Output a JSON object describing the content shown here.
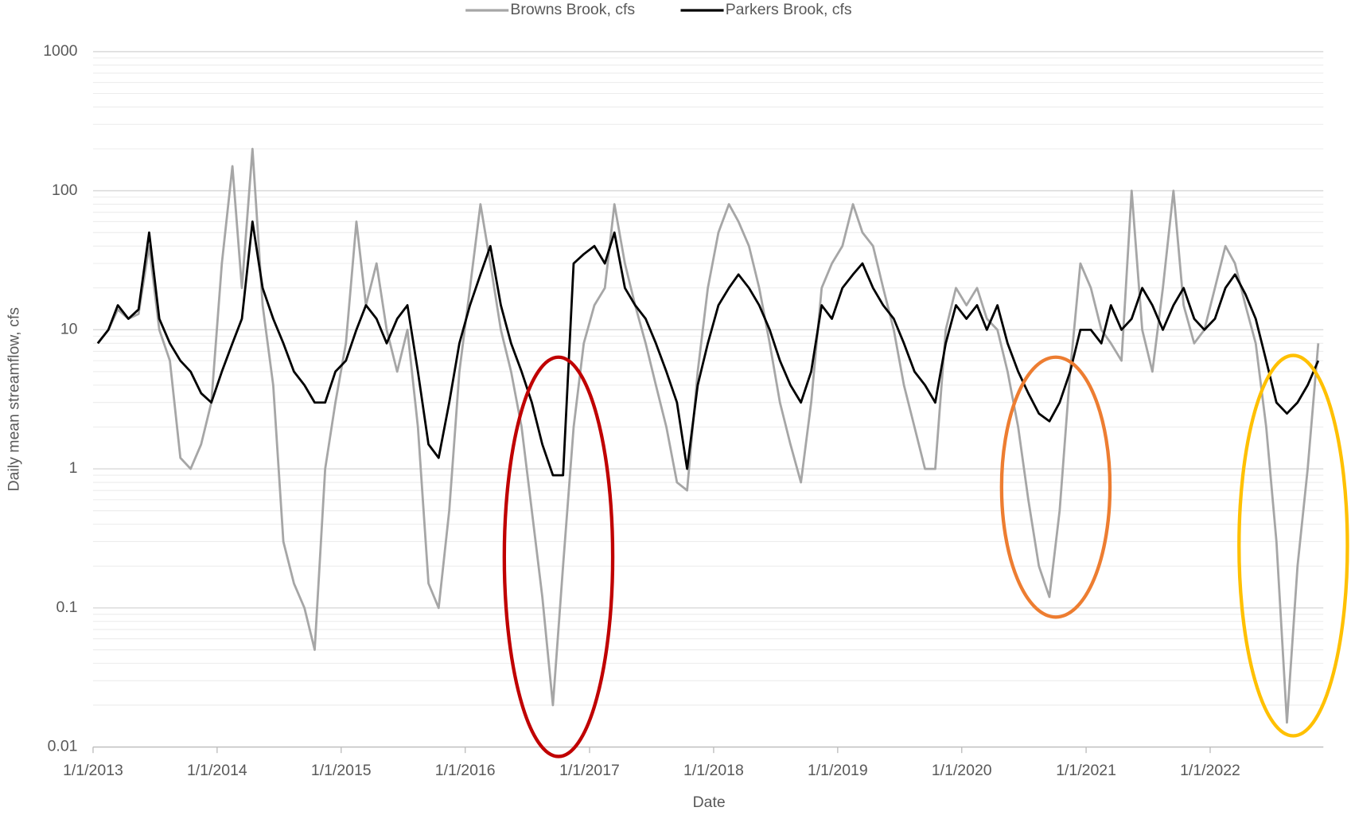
{
  "chart_data": {
    "type": "line",
    "x_label": "Date",
    "y_label": "Daily mean streamflow, cfs",
    "log_scale_y": true,
    "grid": true,
    "minor_grid": true,
    "legend_position": "top",
    "xlim": [
      "2013-01-01",
      "2022-11-30"
    ],
    "xticks": [
      {
        "value": "2013-01-01",
        "label": "1/1/2013"
      },
      {
        "value": "2014-01-01",
        "label": "1/1/2014"
      },
      {
        "value": "2015-01-01",
        "label": "1/1/2015"
      },
      {
        "value": "2016-01-01",
        "label": "1/1/2016"
      },
      {
        "value": "2017-01-01",
        "label": "1/1/2017"
      },
      {
        "value": "2018-01-01",
        "label": "1/1/2018"
      },
      {
        "value": "2019-01-01",
        "label": "1/1/2019"
      },
      {
        "value": "2020-01-01",
        "label": "1/1/2020"
      },
      {
        "value": "2021-01-01",
        "label": "1/1/2021"
      },
      {
        "value": "2022-01-01",
        "label": "1/1/2022"
      }
    ],
    "ylim": [
      0.01,
      1000
    ],
    "yticks": [
      0.01,
      0.1,
      1,
      10,
      100,
      1000
    ],
    "x": [
      "2013-01-15",
      "2013-02-15",
      "2013-03-15",
      "2013-04-15",
      "2013-05-15",
      "2013-06-15",
      "2013-07-15",
      "2013-08-15",
      "2013-09-15",
      "2013-10-15",
      "2013-11-15",
      "2013-12-15",
      "2014-01-15",
      "2014-02-15",
      "2014-03-15",
      "2014-04-15",
      "2014-05-15",
      "2014-06-15",
      "2014-07-15",
      "2014-08-15",
      "2014-09-15",
      "2014-10-15",
      "2014-11-15",
      "2014-12-15",
      "2015-01-15",
      "2015-02-15",
      "2015-03-15",
      "2015-04-15",
      "2015-05-15",
      "2015-06-15",
      "2015-07-15",
      "2015-08-15",
      "2015-09-15",
      "2015-10-15",
      "2015-11-15",
      "2015-12-15",
      "2016-01-15",
      "2016-02-15",
      "2016-03-15",
      "2016-04-15",
      "2016-05-15",
      "2016-06-15",
      "2016-07-15",
      "2016-08-15",
      "2016-09-15",
      "2016-10-15",
      "2016-11-15",
      "2016-12-15",
      "2017-01-15",
      "2017-02-15",
      "2017-03-15",
      "2017-04-15",
      "2017-05-15",
      "2017-06-15",
      "2017-07-15",
      "2017-08-15",
      "2017-09-15",
      "2017-10-15",
      "2017-11-15",
      "2017-12-15",
      "2018-01-15",
      "2018-02-15",
      "2018-03-15",
      "2018-04-15",
      "2018-05-15",
      "2018-06-15",
      "2018-07-15",
      "2018-08-15",
      "2018-09-15",
      "2018-10-15",
      "2018-11-15",
      "2018-12-15",
      "2019-01-15",
      "2019-02-15",
      "2019-03-15",
      "2019-04-15",
      "2019-05-15",
      "2019-06-15",
      "2019-07-15",
      "2019-08-15",
      "2019-09-15",
      "2019-10-15",
      "2019-11-15",
      "2019-12-15",
      "2020-01-15",
      "2020-02-15",
      "2020-03-15",
      "2020-04-15",
      "2020-05-15",
      "2020-06-15",
      "2020-07-15",
      "2020-08-15",
      "2020-09-15",
      "2020-10-15",
      "2020-11-15",
      "2020-12-15",
      "2021-01-15",
      "2021-02-15",
      "2021-03-15",
      "2021-04-15",
      "2021-05-15",
      "2021-06-15",
      "2021-07-15",
      "2021-08-15",
      "2021-09-15",
      "2021-10-15",
      "2021-11-15",
      "2021-12-15",
      "2022-01-15",
      "2022-02-15",
      "2022-03-15",
      "2022-04-15",
      "2022-05-15",
      "2022-06-15",
      "2022-07-15",
      "2022-08-15",
      "2022-09-15",
      "2022-10-15",
      "2022-11-15"
    ],
    "series": [
      {
        "name": "Browns Brook, cfs",
        "color": "#a6a6a6",
        "values": [
          8,
          10,
          14,
          12,
          13,
          40,
          10,
          6,
          1.2,
          1,
          1.5,
          3,
          30,
          150,
          20,
          200,
          15,
          4,
          0.3,
          0.15,
          0.1,
          0.05,
          1,
          3,
          8,
          60,
          15,
          30,
          10,
          5,
          10,
          2,
          0.15,
          0.1,
          0.5,
          5,
          20,
          80,
          30,
          10,
          5,
          2,
          0.5,
          0.12,
          0.02,
          0.2,
          2,
          8,
          15,
          20,
          80,
          30,
          15,
          8,
          4,
          2,
          0.8,
          0.7,
          5,
          20,
          50,
          80,
          60,
          40,
          20,
          8,
          3,
          1.5,
          0.8,
          3,
          20,
          30,
          40,
          80,
          50,
          40,
          20,
          10,
          4,
          2,
          1,
          1,
          10,
          20,
          15,
          20,
          12,
          10,
          5,
          2,
          0.6,
          0.2,
          0.12,
          0.5,
          5,
          30,
          20,
          10,
          8,
          6,
          100,
          10,
          5,
          20,
          100,
          15,
          8,
          10,
          20,
          40,
          30,
          15,
          8,
          2,
          0.3,
          0.015,
          0.2,
          1,
          8
        ]
      },
      {
        "name": "Parkers Brook, cfs",
        "color": "#000000",
        "values": [
          8,
          10,
          15,
          12,
          14,
          50,
          12,
          8,
          6,
          5,
          3.5,
          3,
          5,
          8,
          12,
          60,
          20,
          12,
          8,
          5,
          4,
          3,
          3,
          5,
          6,
          10,
          15,
          12,
          8,
          12,
          15,
          5,
          1.5,
          1.2,
          3,
          8,
          15,
          25,
          40,
          15,
          8,
          5,
          3,
          1.5,
          0.9,
          0.9,
          30,
          35,
          40,
          30,
          50,
          20,
          15,
          12,
          8,
          5,
          3,
          1,
          4,
          8,
          15,
          20,
          25,
          20,
          15,
          10,
          6,
          4,
          3,
          5,
          15,
          12,
          20,
          25,
          30,
          20,
          15,
          12,
          8,
          5,
          4,
          3,
          8,
          15,
          12,
          15,
          10,
          15,
          8,
          5,
          3.5,
          2.5,
          2.2,
          3,
          5,
          10,
          10,
          8,
          15,
          10,
          12,
          20,
          15,
          10,
          15,
          20,
          12,
          10,
          12,
          20,
          25,
          18,
          12,
          6,
          3,
          2.5,
          3,
          4,
          6
        ]
      }
    ]
  }
}
